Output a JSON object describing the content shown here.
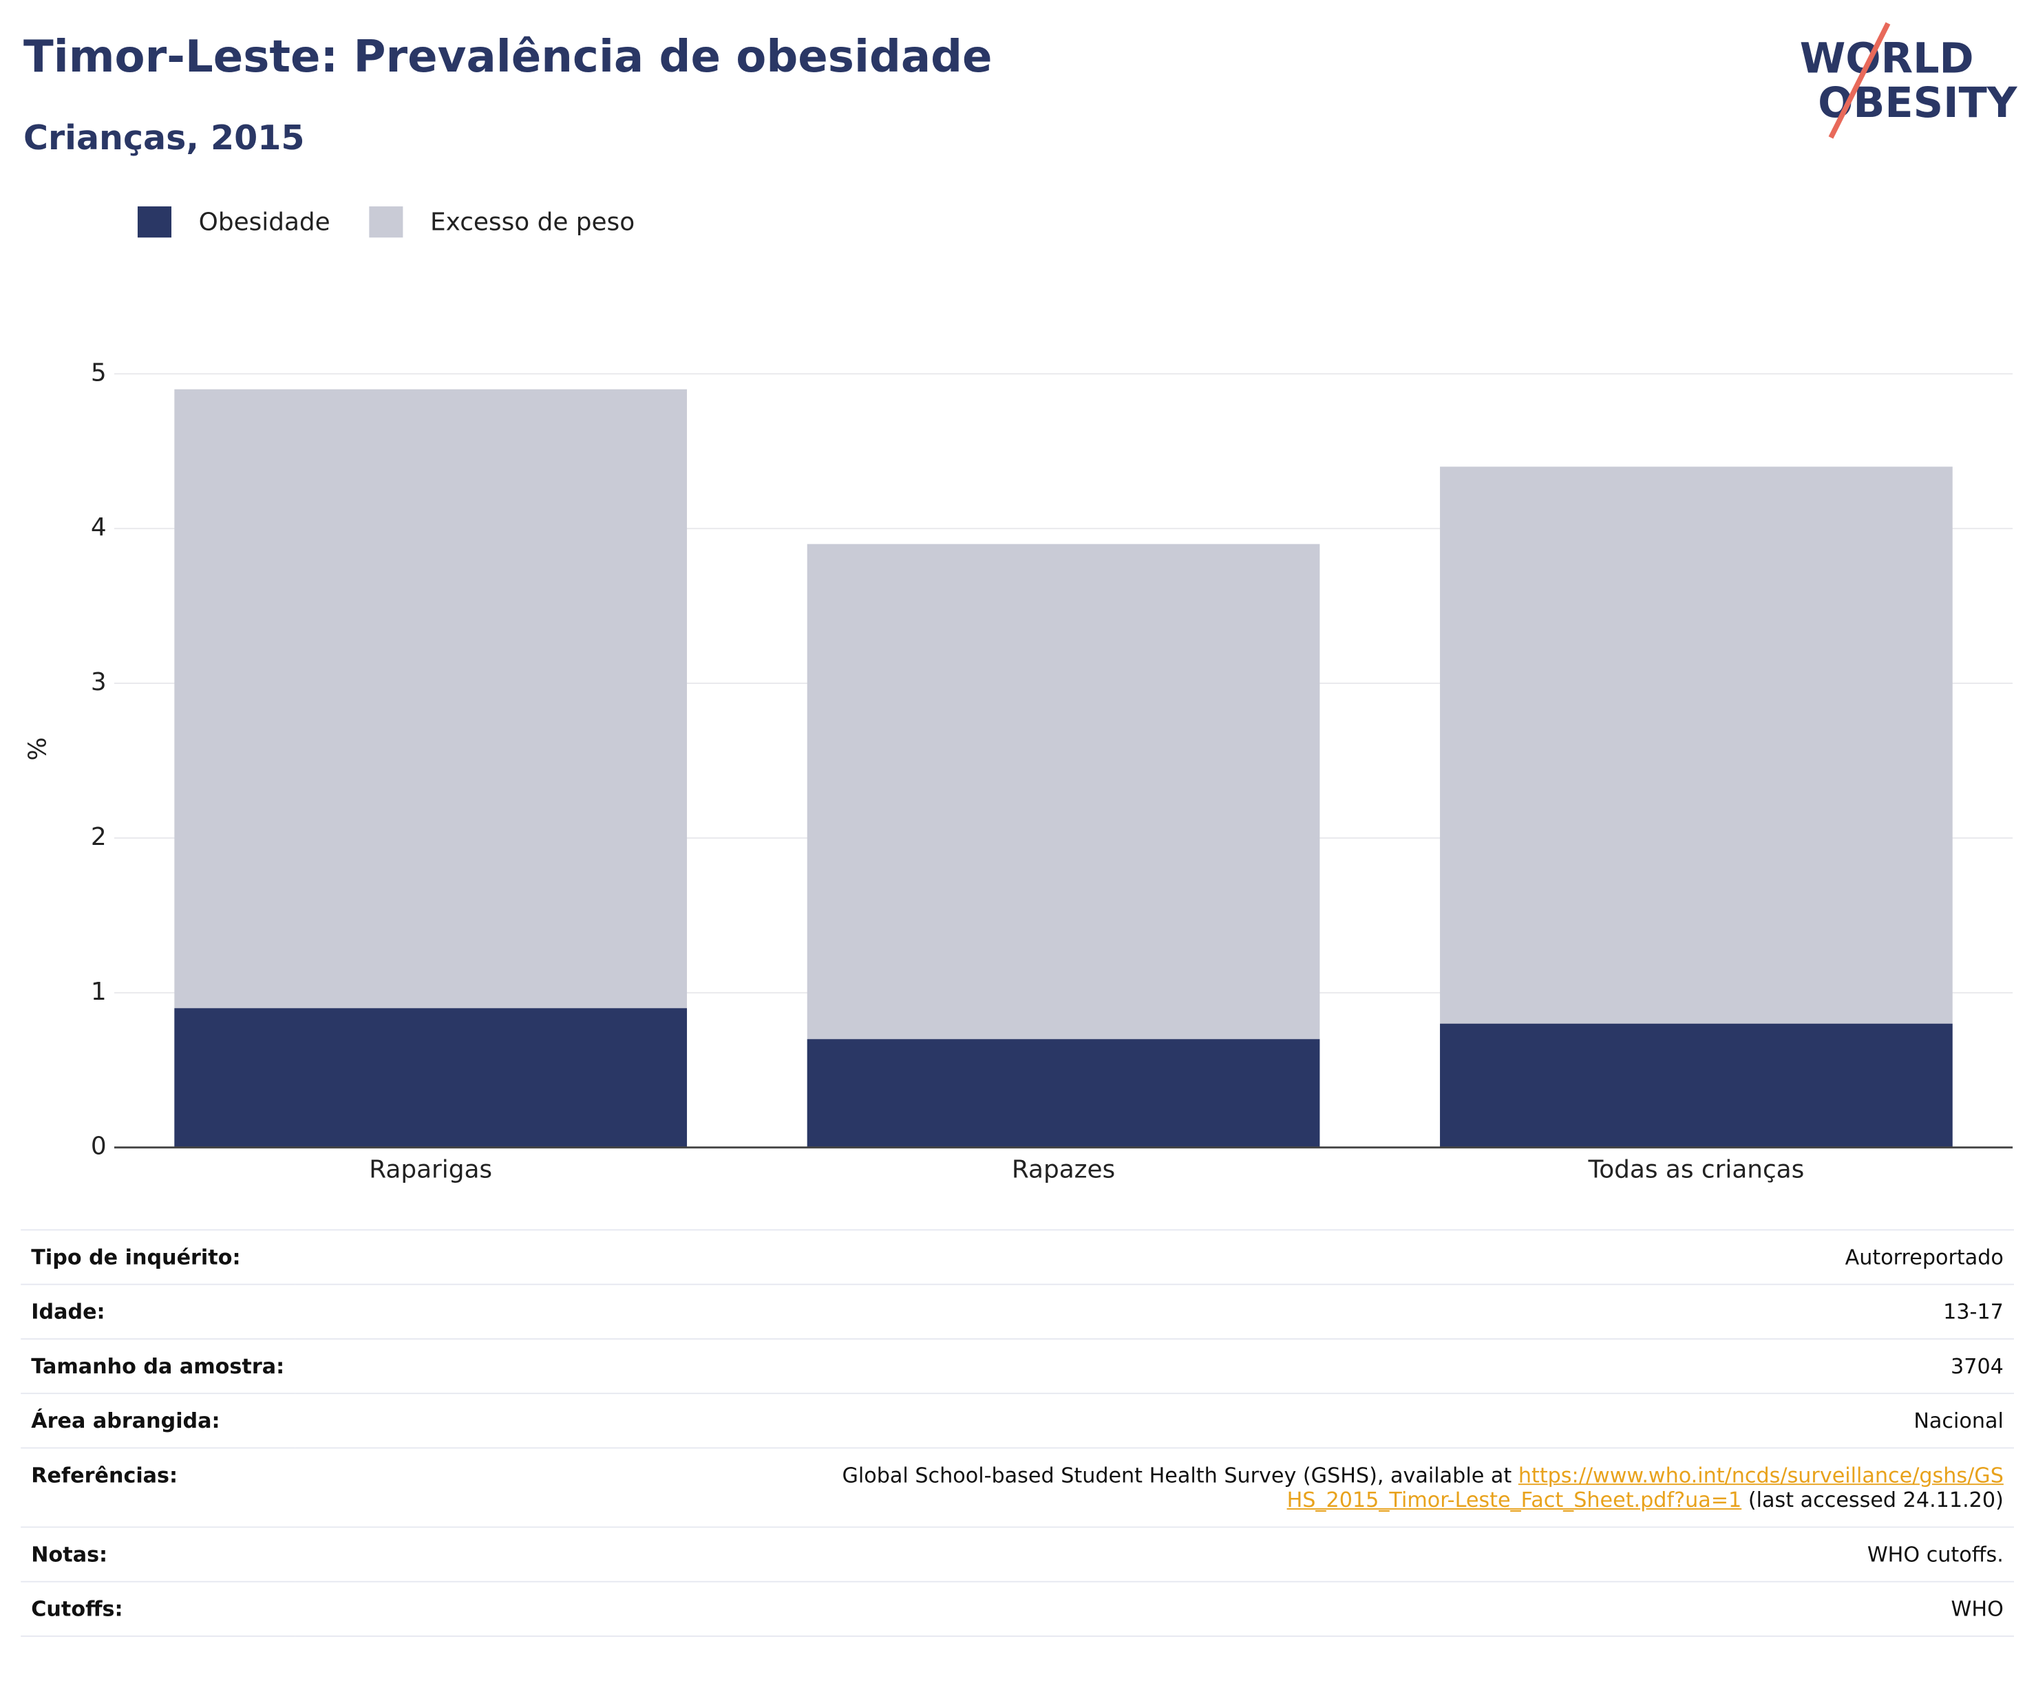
{
  "header": {
    "title": "Timor-Leste: Prevalência de obesidade",
    "subtitle": "Crianças, 2015",
    "logo": [
      "WORLD",
      "OBESITY"
    ]
  },
  "chart_data": {
    "type": "bar",
    "barmode": "overlay",
    "ylabel": "%",
    "categories": [
      "Raparigas",
      "Rapazes",
      "Todas as crianças"
    ],
    "series": [
      {
        "name": "Obesidade",
        "color": "#2a3765",
        "values": [
          0.9,
          0.7,
          0.8
        ]
      },
      {
        "name": "Excesso de peso",
        "color": "#c9cbd6",
        "values": [
          4.9,
          3.9,
          4.4
        ]
      }
    ],
    "ylim": [
      0,
      5
    ],
    "yticks": [
      0,
      1,
      2,
      3,
      4,
      5
    ],
    "grid": true,
    "legend": "top-left"
  },
  "table": {
    "rows": [
      {
        "label": "Tipo de inquérito:",
        "value": "Autorreportado"
      },
      {
        "label": "Idade:",
        "value": "13-17"
      },
      {
        "label": "Tamanho da amostra:",
        "value": "3704"
      },
      {
        "label": "Área abrangida:",
        "value": "Nacional"
      },
      {
        "label": "Referências:",
        "value": "Global School-based Student Health Survey (GSHS), available at",
        "link": "https://www.who.int/ncds/surveillance/gshs/GSHS_2015_Timor-Leste_Fact_Sheet.pdf?ua=1",
        "suffix": "(last accessed 24.11.20)"
      },
      {
        "label": "Notas:",
        "value": "WHO cutoffs."
      },
      {
        "label": "Cutoffs:",
        "value": "WHO"
      }
    ]
  }
}
